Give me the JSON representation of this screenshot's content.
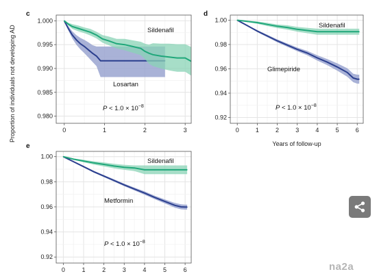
{
  "y_axis_title": "Proportion of individuals not developing AD",
  "watermark": "na2a",
  "colors": {
    "sildenafil": "#1fa77a",
    "sildenafil_band": "#8ad3b5",
    "comparator": "#2b3f8e",
    "comparator_band": "#9aa5d0"
  },
  "chart_data": [
    {
      "type": "line",
      "panel": "c",
      "xlabel": "",
      "xlim": [
        -0.2,
        3.15
      ],
      "ylim": [
        0.9785,
        1.0012
      ],
      "xticks": [
        "0",
        "1",
        "2",
        "3"
      ],
      "xtick_values": [
        0,
        1,
        2,
        3
      ],
      "yticks": [
        "1.000",
        "0.995",
        "0.990",
        "0.985",
        "0.980"
      ],
      "ytick_values": [
        1.0,
        0.995,
        0.99,
        0.985,
        0.98
      ],
      "grid": true,
      "p_value": "P < 1.0 × 10⁻⁸",
      "series": [
        {
          "name": "Sildenafil",
          "x": [
            0,
            0.1,
            0.2,
            0.35,
            0.5,
            0.65,
            0.8,
            0.95,
            1.1,
            1.3,
            1.5,
            1.7,
            1.9,
            2.0,
            2.1,
            2.2,
            2.4,
            2.6,
            2.8,
            3.0,
            3.15
          ],
          "y": [
            1.0,
            0.9993,
            0.9988,
            0.9984,
            0.998,
            0.9976,
            0.997,
            0.9962,
            0.9958,
            0.9952,
            0.995,
            0.9946,
            0.9942,
            0.9936,
            0.9932,
            0.9929,
            0.9926,
            0.9924,
            0.9922,
            0.9922,
            0.9915
          ],
          "band_low": [
            1.0,
            0.999,
            0.9983,
            0.9978,
            0.9974,
            0.9969,
            0.9963,
            0.9954,
            0.9949,
            0.9942,
            0.9938,
            0.9933,
            0.9928,
            0.992,
            0.991,
            0.9905,
            0.99,
            0.9896,
            0.9893,
            0.9893,
            0.9885
          ],
          "band_high": [
            1.0,
            0.9996,
            0.9993,
            0.999,
            0.9986,
            0.9983,
            0.9977,
            0.997,
            0.9967,
            0.9962,
            0.9962,
            0.9959,
            0.9956,
            0.9952,
            0.995,
            0.9953,
            0.9952,
            0.9952,
            0.9951,
            0.9951,
            0.9945
          ]
        },
        {
          "name": "Losartan",
          "x": [
            0,
            0.1,
            0.2,
            0.3,
            0.4,
            0.5,
            0.6,
            0.7,
            0.8,
            0.9,
            1.0,
            1.5,
            2.0,
            2.5
          ],
          "y": [
            1.0,
            0.9984,
            0.997,
            0.996,
            0.9952,
            0.9946,
            0.9939,
            0.9932,
            0.9926,
            0.9916,
            0.9916,
            0.9916,
            0.9916,
            0.9916
          ],
          "band_low": [
            1.0,
            0.998,
            0.9963,
            0.995,
            0.994,
            0.9932,
            0.9923,
            0.9914,
            0.9905,
            0.9882,
            0.9882,
            0.9882,
            0.9882,
            0.9882
          ],
          "band_high": [
            1.0,
            0.9989,
            0.9978,
            0.997,
            0.9964,
            0.996,
            0.9955,
            0.9949,
            0.9946,
            0.9946,
            0.9946,
            0.9946,
            0.9946,
            0.9946
          ]
        }
      ]
    },
    {
      "type": "line",
      "panel": "d",
      "xlabel": "Years of follow-up",
      "xlim": [
        -0.35,
        6.3
      ],
      "ylim": [
        0.9152,
        1.0042
      ],
      "xticks": [
        "0",
        "1",
        "2",
        "3",
        "4",
        "5",
        "6"
      ],
      "xtick_values": [
        0,
        1,
        2,
        3,
        4,
        5,
        6
      ],
      "yticks": [
        "1.00",
        "0.98",
        "0.96",
        "0.94",
        "0.92"
      ],
      "ytick_values": [
        1.0,
        0.98,
        0.96,
        0.94,
        0.92
      ],
      "grid": true,
      "p_value": "P < 1.0 × 10⁻⁸",
      "series": [
        {
          "name": "Sildenafil",
          "x": [
            0,
            0.5,
            1,
            1.5,
            2,
            2.5,
            3,
            3.5,
            4,
            4.5,
            5,
            5.5,
            6,
            6.1
          ],
          "y": [
            1.0,
            0.999,
            0.998,
            0.9965,
            0.995,
            0.994,
            0.9925,
            0.9915,
            0.9905,
            0.9905,
            0.9905,
            0.9905,
            0.9905,
            0.9905
          ],
          "band_low": [
            1.0,
            0.9985,
            0.997,
            0.9952,
            0.9935,
            0.9922,
            0.9905,
            0.9893,
            0.988,
            0.988,
            0.988,
            0.988,
            0.988,
            0.988
          ],
          "band_high": [
            1.0,
            0.9995,
            0.999,
            0.9978,
            0.9965,
            0.9958,
            0.9945,
            0.9937,
            0.993,
            0.993,
            0.993,
            0.993,
            0.993,
            0.993
          ]
        },
        {
          "name": "Glimepiride",
          "x": [
            0,
            0.5,
            1,
            1.5,
            2,
            2.5,
            3,
            3.5,
            4,
            4.5,
            5,
            5.5,
            5.8,
            6,
            6.1
          ],
          "y": [
            1.0,
            0.9955,
            0.991,
            0.987,
            0.983,
            0.9795,
            0.976,
            0.973,
            0.969,
            0.9655,
            0.9615,
            0.957,
            0.9525,
            0.9515,
            0.9515
          ],
          "band_low": [
            1.0,
            0.995,
            0.9902,
            0.986,
            0.9818,
            0.9782,
            0.9745,
            0.9712,
            0.9668,
            0.963,
            0.9585,
            0.9535,
            0.949,
            0.9478,
            0.9478
          ],
          "band_high": [
            1.0,
            0.996,
            0.9918,
            0.988,
            0.9842,
            0.9808,
            0.9775,
            0.9748,
            0.9712,
            0.968,
            0.9645,
            0.9605,
            0.956,
            0.9552,
            0.9552
          ]
        }
      ]
    },
    {
      "type": "line",
      "panel": "e",
      "xlabel": "",
      "xlim": [
        -0.35,
        6.3
      ],
      "ylim": [
        0.9152,
        1.0042
      ],
      "xticks": [
        "0",
        "1",
        "2",
        "3",
        "4",
        "5",
        "6"
      ],
      "xtick_values": [
        0,
        1,
        2,
        3,
        4,
        5,
        6
      ],
      "yticks": [
        "1.00",
        "0.98",
        "0.96",
        "0.94",
        "0.92"
      ],
      "ytick_values": [
        1.0,
        0.98,
        0.96,
        0.94,
        0.92
      ],
      "grid": true,
      "p_value": "P < 1.0 × 10⁻⁸",
      "series": [
        {
          "name": "Sildenafil",
          "x": [
            0,
            0.5,
            1,
            1.5,
            2,
            2.5,
            3,
            3.5,
            4,
            4.5,
            5,
            5.5,
            6,
            6.1
          ],
          "y": [
            1.0,
            0.998,
            0.9965,
            0.995,
            0.9938,
            0.9925,
            0.9915,
            0.991,
            0.9895,
            0.9895,
            0.9895,
            0.9895,
            0.9895,
            0.9895
          ],
          "band_low": [
            1.0,
            0.9975,
            0.9955,
            0.9937,
            0.9922,
            0.9907,
            0.9895,
            0.9885,
            0.986,
            0.986,
            0.986,
            0.986,
            0.986,
            0.986
          ],
          "band_high": [
            1.0,
            0.9985,
            0.9975,
            0.9963,
            0.9954,
            0.9943,
            0.9935,
            0.993,
            0.993,
            0.993,
            0.993,
            0.993,
            0.993,
            0.993
          ]
        },
        {
          "name": "Metformin",
          "x": [
            0,
            0.5,
            1,
            1.5,
            2,
            2.5,
            3,
            3.5,
            4,
            4.5,
            5,
            5.5,
            5.8,
            6,
            6.1
          ],
          "y": [
            1.0,
            0.996,
            0.992,
            0.988,
            0.9845,
            0.981,
            0.9775,
            0.9742,
            0.971,
            0.9675,
            0.9643,
            0.9612,
            0.96,
            0.9598,
            0.9598
          ],
          "band_low": [
            1.0,
            0.9956,
            0.9914,
            0.9873,
            0.9837,
            0.9801,
            0.9765,
            0.9731,
            0.9697,
            0.9661,
            0.9627,
            0.9593,
            0.958,
            0.9578,
            0.9578
          ],
          "band_high": [
            1.0,
            0.9964,
            0.9926,
            0.9887,
            0.9853,
            0.9819,
            0.9785,
            0.9753,
            0.9723,
            0.9689,
            0.9659,
            0.9631,
            0.962,
            0.9618,
            0.9618
          ]
        }
      ]
    }
  ]
}
